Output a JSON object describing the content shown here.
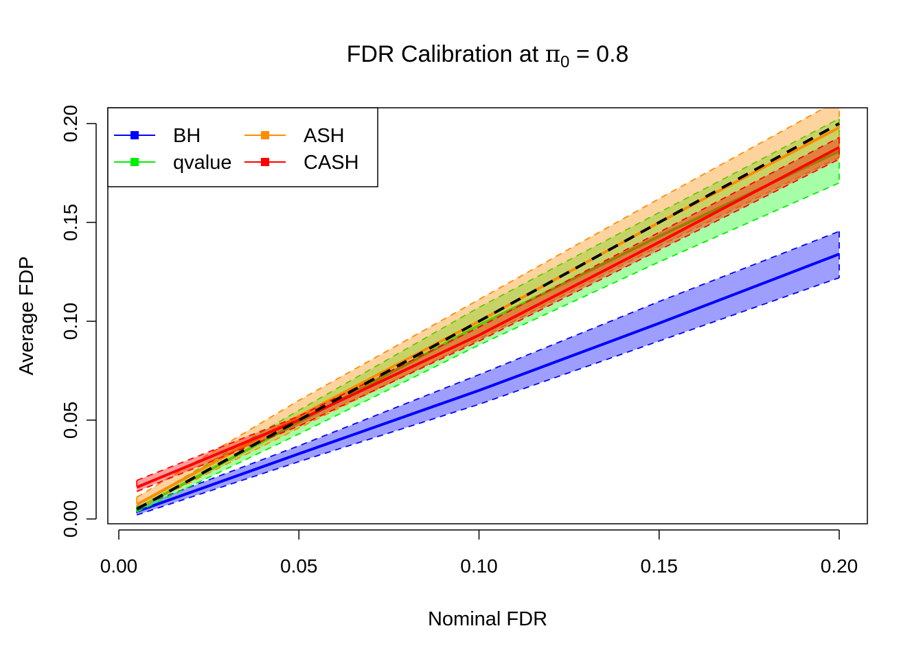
{
  "chart_data": {
    "type": "line",
    "title_main": "FDR Calibration at ",
    "title_symbol": "π",
    "title_sub": "0",
    "title_tail": " = 0.8",
    "xlabel": "Nominal FDR",
    "ylabel": "Average FDP",
    "xlim": [
      0,
      0.2
    ],
    "ylim": [
      0,
      0.2
    ],
    "xticks": [
      "0.00",
      "0.05",
      "0.10",
      "0.15",
      "0.20"
    ],
    "yticks": [
      "0.00",
      "0.05",
      "0.10",
      "0.15",
      "0.20"
    ],
    "x": [
      0.005,
      0.05,
      0.1,
      0.15,
      0.2
    ],
    "reference_line": {
      "style": "dashed",
      "color": "#000000",
      "slope": 1
    },
    "legend_position": "top-left",
    "series": [
      {
        "name": "BH",
        "color": "#0000FF",
        "fill": "rgba(0,0,255,0.38)",
        "mean": [
          0.0038,
          0.033,
          0.065,
          0.099,
          0.134
        ],
        "upper": [
          0.006,
          0.037,
          0.073,
          0.11,
          0.1455
        ],
        "lower": [
          0.002,
          0.029,
          0.058,
          0.09,
          0.122
        ]
      },
      {
        "name": "qvalue",
        "color": "#00EE00",
        "fill": "rgba(0,255,0,0.35)",
        "mean": [
          0.005,
          0.049,
          0.098,
          0.143,
          0.186
        ],
        "upper": [
          0.007,
          0.055,
          0.107,
          0.155,
          0.2025
        ],
        "lower": [
          0.0035,
          0.043,
          0.088,
          0.13,
          0.17
        ]
      },
      {
        "name": "ASH",
        "color": "#FF8C00",
        "fill": "rgba(255,140,0,0.38)",
        "mean": [
          0.0073,
          0.052,
          0.1,
          0.15,
          0.198
        ],
        "upper": [
          0.011,
          0.06,
          0.111,
          0.162,
          0.212
        ],
        "lower": [
          0.005,
          0.046,
          0.091,
          0.138,
          0.183
        ]
      },
      {
        "name": "CASH",
        "color": "#FF0000",
        "fill": "rgba(255,0,0,0.38)",
        "mean": [
          0.016,
          0.05,
          0.093,
          0.14,
          0.188
        ],
        "upper": [
          0.0195,
          0.052,
          0.097,
          0.145,
          0.193
        ],
        "lower": [
          0.0139,
          0.047,
          0.09,
          0.136,
          0.182
        ]
      }
    ]
  }
}
